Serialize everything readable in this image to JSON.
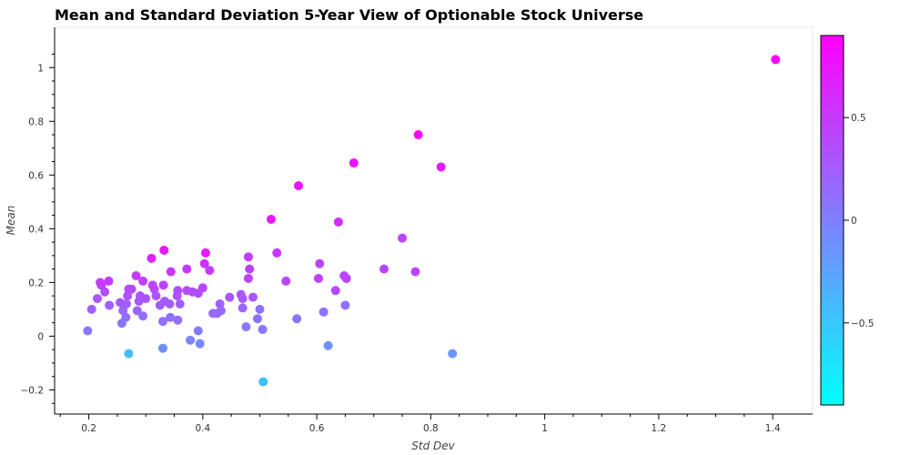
{
  "chart_data": {
    "type": "scatter",
    "title": "Mean and Standard Deviation 5-Year View of Optionable Stock Universe",
    "xlabel": "Std Dev",
    "ylabel": "Mean",
    "xlim": [
      0.14,
      1.47
    ],
    "ylim": [
      -0.29,
      1.15
    ],
    "x_ticks": [
      0.2,
      0.4,
      0.6,
      0.8,
      1,
      1.2,
      1.4
    ],
    "x_tick_labels": [
      "0.2",
      "0.4",
      "0.6",
      "0.8",
      "1",
      "1.2",
      "1.4"
    ],
    "y_ticks": [
      -0.2,
      0,
      0.2,
      0.4,
      0.6,
      0.8,
      1
    ],
    "y_tick_labels": [
      "−0.2",
      "0",
      "0.2",
      "0.4",
      "0.6",
      "0.8",
      "1"
    ],
    "colorbar": {
      "range": [
        -0.9,
        0.9
      ],
      "ticks": [
        -0.5,
        0,
        0.5
      ],
      "tick_labels": [
        "−0.5",
        "0",
        "0.5"
      ],
      "colors": [
        "#00ffff",
        "#ff00ff"
      ]
    },
    "grid": false,
    "points": [
      {
        "x": 1.405,
        "y": 1.03,
        "c": 0.88
      },
      {
        "x": 0.778,
        "y": 0.75,
        "c": 0.82
      },
      {
        "x": 0.818,
        "y": 0.63,
        "c": 0.7
      },
      {
        "x": 0.665,
        "y": 0.645,
        "c": 0.8
      },
      {
        "x": 0.568,
        "y": 0.56,
        "c": 0.78
      },
      {
        "x": 0.52,
        "y": 0.435,
        "c": 0.72
      },
      {
        "x": 0.638,
        "y": 0.425,
        "c": 0.6
      },
      {
        "x": 0.75,
        "y": 0.365,
        "c": 0.42
      },
      {
        "x": 0.773,
        "y": 0.24,
        "c": 0.4
      },
      {
        "x": 0.718,
        "y": 0.25,
        "c": 0.4
      },
      {
        "x": 0.605,
        "y": 0.27,
        "c": 0.42
      },
      {
        "x": 0.603,
        "y": 0.215,
        "c": 0.45
      },
      {
        "x": 0.53,
        "y": 0.31,
        "c": 0.5
      },
      {
        "x": 0.546,
        "y": 0.205,
        "c": 0.4
      },
      {
        "x": 0.648,
        "y": 0.225,
        "c": 0.4
      },
      {
        "x": 0.652,
        "y": 0.215,
        "c": 0.42
      },
      {
        "x": 0.633,
        "y": 0.17,
        "c": 0.38
      },
      {
        "x": 0.65,
        "y": 0.115,
        "c": 0.12
      },
      {
        "x": 0.612,
        "y": 0.09,
        "c": 0.1
      },
      {
        "x": 0.565,
        "y": 0.065,
        "c": 0.08
      },
      {
        "x": 0.62,
        "y": -0.035,
        "c": -0.12
      },
      {
        "x": 0.838,
        "y": -0.065,
        "c": -0.15
      },
      {
        "x": 0.506,
        "y": -0.17,
        "c": -0.45
      },
      {
        "x": 0.505,
        "y": 0.025,
        "c": 0.05
      },
      {
        "x": 0.5,
        "y": 0.1,
        "c": 0.1
      },
      {
        "x": 0.496,
        "y": 0.065,
        "c": 0.08
      },
      {
        "x": 0.476,
        "y": 0.035,
        "c": 0.06
      },
      {
        "x": 0.48,
        "y": 0.295,
        "c": 0.5
      },
      {
        "x": 0.482,
        "y": 0.25,
        "c": 0.45
      },
      {
        "x": 0.48,
        "y": 0.215,
        "c": 0.42
      },
      {
        "x": 0.488,
        "y": 0.145,
        "c": 0.3
      },
      {
        "x": 0.467,
        "y": 0.155,
        "c": 0.3
      },
      {
        "x": 0.47,
        "y": 0.14,
        "c": 0.28
      },
      {
        "x": 0.47,
        "y": 0.105,
        "c": 0.2
      },
      {
        "x": 0.447,
        "y": 0.145,
        "c": 0.3
      },
      {
        "x": 0.43,
        "y": 0.12,
        "c": 0.22
      },
      {
        "x": 0.432,
        "y": 0.095,
        "c": 0.18
      },
      {
        "x": 0.425,
        "y": 0.085,
        "c": 0.15
      },
      {
        "x": 0.418,
        "y": 0.085,
        "c": 0.15
      },
      {
        "x": 0.405,
        "y": 0.31,
        "c": 0.7
      },
      {
        "x": 0.403,
        "y": 0.27,
        "c": 0.55
      },
      {
        "x": 0.412,
        "y": 0.245,
        "c": 0.5
      },
      {
        "x": 0.4,
        "y": 0.18,
        "c": 0.4
      },
      {
        "x": 0.392,
        "y": 0.16,
        "c": 0.35
      },
      {
        "x": 0.382,
        "y": 0.165,
        "c": 0.35
      },
      {
        "x": 0.372,
        "y": 0.25,
        "c": 0.52
      },
      {
        "x": 0.372,
        "y": 0.17,
        "c": 0.38
      },
      {
        "x": 0.36,
        "y": 0.12,
        "c": 0.25
      },
      {
        "x": 0.355,
        "y": 0.15,
        "c": 0.3
      },
      {
        "x": 0.356,
        "y": 0.17,
        "c": 0.35
      },
      {
        "x": 0.356,
        "y": 0.06,
        "c": 0.12
      },
      {
        "x": 0.342,
        "y": 0.12,
        "c": 0.25
      },
      {
        "x": 0.343,
        "y": 0.07,
        "c": 0.12
      },
      {
        "x": 0.344,
        "y": 0.24,
        "c": 0.5
      },
      {
        "x": 0.332,
        "y": 0.32,
        "c": 0.75
      },
      {
        "x": 0.331,
        "y": 0.19,
        "c": 0.45
      },
      {
        "x": 0.333,
        "y": 0.13,
        "c": 0.28
      },
      {
        "x": 0.33,
        "y": 0.055,
        "c": 0.1
      },
      {
        "x": 0.325,
        "y": 0.115,
        "c": 0.25
      },
      {
        "x": 0.33,
        "y": -0.045,
        "c": -0.1
      },
      {
        "x": 0.318,
        "y": 0.15,
        "c": 0.3
      },
      {
        "x": 0.315,
        "y": 0.175,
        "c": 0.38
      },
      {
        "x": 0.312,
        "y": 0.19,
        "c": 0.42
      },
      {
        "x": 0.31,
        "y": 0.29,
        "c": 0.65
      },
      {
        "x": 0.3,
        "y": 0.14,
        "c": 0.3
      },
      {
        "x": 0.295,
        "y": 0.205,
        "c": 0.45
      },
      {
        "x": 0.295,
        "y": 0.075,
        "c": 0.12
      },
      {
        "x": 0.29,
        "y": 0.15,
        "c": 0.32
      },
      {
        "x": 0.288,
        "y": 0.13,
        "c": 0.28
      },
      {
        "x": 0.283,
        "y": 0.225,
        "c": 0.48
      },
      {
        "x": 0.285,
        "y": 0.095,
        "c": 0.18
      },
      {
        "x": 0.275,
        "y": 0.175,
        "c": 0.38
      },
      {
        "x": 0.27,
        "y": 0.175,
        "c": 0.38
      },
      {
        "x": 0.268,
        "y": 0.15,
        "c": 0.32
      },
      {
        "x": 0.266,
        "y": 0.12,
        "c": 0.25
      },
      {
        "x": 0.265,
        "y": 0.07,
        "c": 0.12
      },
      {
        "x": 0.26,
        "y": 0.095,
        "c": 0.18
      },
      {
        "x": 0.258,
        "y": 0.048,
        "c": 0.08
      },
      {
        "x": 0.255,
        "y": 0.125,
        "c": 0.25
      },
      {
        "x": 0.27,
        "y": -0.065,
        "c": -0.45
      },
      {
        "x": 0.235,
        "y": 0.205,
        "c": 0.5
      },
      {
        "x": 0.236,
        "y": 0.115,
        "c": 0.25
      },
      {
        "x": 0.228,
        "y": 0.165,
        "c": 0.35
      },
      {
        "x": 0.222,
        "y": 0.19,
        "c": 0.45
      },
      {
        "x": 0.22,
        "y": 0.2,
        "c": 0.48
      },
      {
        "x": 0.215,
        "y": 0.14,
        "c": 0.3
      },
      {
        "x": 0.205,
        "y": 0.1,
        "c": 0.2
      },
      {
        "x": 0.198,
        "y": 0.02,
        "c": 0.05
      },
      {
        "x": 0.392,
        "y": 0.02,
        "c": 0.02
      },
      {
        "x": 0.378,
        "y": -0.015,
        "c": -0.05
      },
      {
        "x": 0.395,
        "y": -0.028,
        "c": -0.08
      }
    ]
  }
}
